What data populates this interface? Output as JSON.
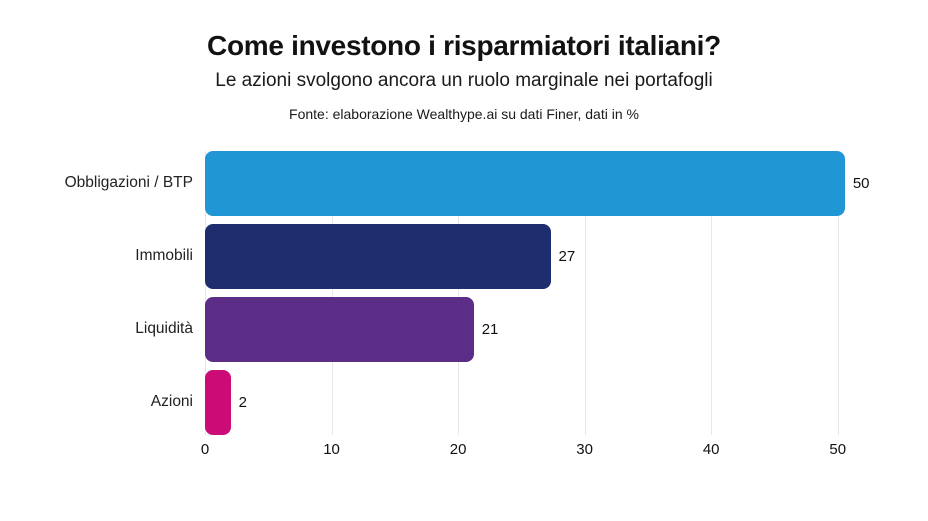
{
  "header": {
    "title": "Come investono i risparmiatori italiani?",
    "subtitle": "Le azioni svolgono ancora un ruolo marginale nei portafogli",
    "source": "Fonte: elaborazione Wealthype.ai su dati Finer, dati in %"
  },
  "chart_data": {
    "type": "bar",
    "orientation": "horizontal",
    "title": "Come investono i risparmiatori italiani?",
    "subtitle": "Le azioni svolgono ancora un ruolo marginale nei portafogli",
    "annotation": "Fonte: elaborazione Wealthype.ai su dati Finer, dati in %",
    "categories": [
      "Obbligazioni / BTP",
      "Immobili",
      "Liquidità",
      "Azioni"
    ],
    "values": [
      50,
      27,
      21,
      2
    ],
    "bar_colors": [
      "#2196d4",
      "#1e2d6e",
      "#5c2d87",
      "#cb0c77"
    ],
    "value_labels": [
      "50",
      "27",
      "21",
      "2"
    ],
    "x_ticks": [
      0,
      10,
      20,
      30,
      40,
      50
    ],
    "xlim": [
      0,
      56.5
    ],
    "xlabel": "",
    "ylabel": "",
    "grid": "vertical",
    "gridline_color": "#e8e8e8",
    "legend": "none",
    "background": "#ffffff"
  }
}
